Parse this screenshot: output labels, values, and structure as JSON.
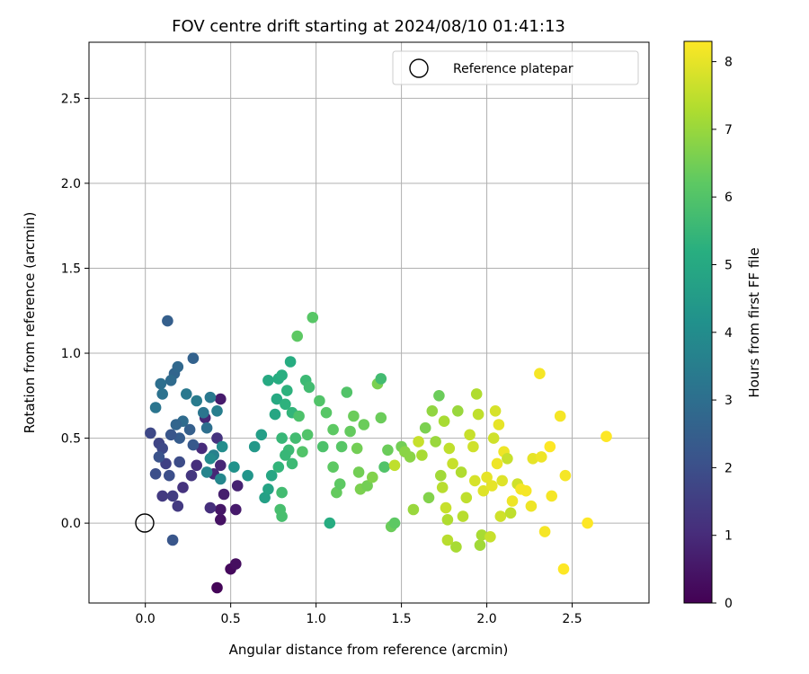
{
  "chart_data": {
    "type": "scatter",
    "title": "FOV centre drift starting at 2024/08/10 01:41:13",
    "xlabel": "Angular distance from reference (arcmin)",
    "ylabel": "Rotation from reference (arcmin)",
    "xlim": [
      -0.33,
      2.95
    ],
    "ylim": [
      -0.47,
      2.83
    ],
    "xticks": [
      "0.0",
      "0.5",
      "1.0",
      "1.5",
      "2.0",
      "2.5"
    ],
    "yticks": [
      "0.0",
      "0.5",
      "1.0",
      "1.5",
      "2.0",
      "2.5"
    ],
    "grid": true,
    "legend": {
      "position": "top-right",
      "entries": [
        "Reference platepar"
      ]
    },
    "reference_point": {
      "x": 0.0,
      "y": 0.0
    },
    "colorbar": {
      "label": "Hours from first FF file",
      "range": [
        0,
        8.3
      ],
      "ticks": [
        "0",
        "1",
        "2",
        "3",
        "4",
        "5",
        "6",
        "7",
        "8"
      ],
      "colormap": "viridis"
    },
    "points": [
      {
        "x": 0.42,
        "y": -0.38,
        "h": 0.1
      },
      {
        "x": 0.5,
        "y": -0.27,
        "h": 0.2
      },
      {
        "x": 0.53,
        "y": -0.24,
        "h": 0.3
      },
      {
        "x": 0.44,
        "y": 0.02,
        "h": 0.4
      },
      {
        "x": 0.44,
        "y": 0.08,
        "h": 0.5
      },
      {
        "x": 0.53,
        "y": 0.08,
        "h": 0.6
      },
      {
        "x": 0.46,
        "y": 0.17,
        "h": 0.7
      },
      {
        "x": 0.54,
        "y": 0.22,
        "h": 0.8
      },
      {
        "x": 0.4,
        "y": 0.29,
        "h": 0.9
      },
      {
        "x": 0.44,
        "y": 0.73,
        "h": 0.6
      },
      {
        "x": 0.35,
        "y": 0.62,
        "h": 0.9
      },
      {
        "x": 0.33,
        "y": 0.44,
        "h": 1.0
      },
      {
        "x": 0.3,
        "y": 0.34,
        "h": 1.1
      },
      {
        "x": 0.22,
        "y": 0.21,
        "h": 1.2
      },
      {
        "x": 0.27,
        "y": 0.28,
        "h": 1.3
      },
      {
        "x": 0.38,
        "y": 0.09,
        "h": 1.1
      },
      {
        "x": 0.42,
        "y": 0.5,
        "h": 1.2
      },
      {
        "x": 0.44,
        "y": 0.34,
        "h": 0.9
      },
      {
        "x": 0.1,
        "y": 0.16,
        "h": 1.4
      },
      {
        "x": 0.16,
        "y": 0.16,
        "h": 1.5
      },
      {
        "x": 0.19,
        "y": 0.1,
        "h": 1.4
      },
      {
        "x": 0.12,
        "y": 0.35,
        "h": 1.6
      },
      {
        "x": 0.08,
        "y": 0.47,
        "h": 1.7
      },
      {
        "x": 0.03,
        "y": 0.53,
        "h": 1.8
      },
      {
        "x": 0.1,
        "y": 0.44,
        "h": 1.8
      },
      {
        "x": 0.2,
        "y": 0.36,
        "h": 1.9
      },
      {
        "x": 0.14,
        "y": 0.28,
        "h": 2.0
      },
      {
        "x": 0.06,
        "y": 0.29,
        "h": 2.0
      },
      {
        "x": 0.08,
        "y": 0.39,
        "h": 2.1
      },
      {
        "x": 0.16,
        "y": -0.1,
        "h": 2.2
      },
      {
        "x": 0.13,
        "y": 1.19,
        "h": 2.5
      },
      {
        "x": 0.28,
        "y": 0.97,
        "h": 2.6
      },
      {
        "x": 0.17,
        "y": 0.88,
        "h": 2.7
      },
      {
        "x": 0.19,
        "y": 0.92,
        "h": 2.8
      },
      {
        "x": 0.15,
        "y": 0.84,
        "h": 2.9
      },
      {
        "x": 0.09,
        "y": 0.82,
        "h": 3.0
      },
      {
        "x": 0.1,
        "y": 0.76,
        "h": 3.1
      },
      {
        "x": 0.06,
        "y": 0.68,
        "h": 3.2
      },
      {
        "x": 0.24,
        "y": 0.76,
        "h": 3.3
      },
      {
        "x": 0.3,
        "y": 0.72,
        "h": 3.4
      },
      {
        "x": 0.38,
        "y": 0.74,
        "h": 3.3
      },
      {
        "x": 0.34,
        "y": 0.65,
        "h": 3.2
      },
      {
        "x": 0.22,
        "y": 0.6,
        "h": 2.9
      },
      {
        "x": 0.18,
        "y": 0.58,
        "h": 2.7
      },
      {
        "x": 0.26,
        "y": 0.55,
        "h": 2.5
      },
      {
        "x": 0.2,
        "y": 0.5,
        "h": 2.4
      },
      {
        "x": 0.28,
        "y": 0.46,
        "h": 2.3
      },
      {
        "x": 0.15,
        "y": 0.52,
        "h": 2.2
      },
      {
        "x": 0.36,
        "y": 0.56,
        "h": 3.0
      },
      {
        "x": 0.42,
        "y": 0.66,
        "h": 3.5
      },
      {
        "x": 0.4,
        "y": 0.4,
        "h": 3.6
      },
      {
        "x": 0.36,
        "y": 0.3,
        "h": 3.7
      },
      {
        "x": 0.44,
        "y": 0.26,
        "h": 3.8
      },
      {
        "x": 0.38,
        "y": 0.38,
        "h": 3.9
      },
      {
        "x": 0.45,
        "y": 0.45,
        "h": 4.0
      },
      {
        "x": 0.52,
        "y": 0.33,
        "h": 4.2
      },
      {
        "x": 0.6,
        "y": 0.28,
        "h": 4.3
      },
      {
        "x": 0.64,
        "y": 0.45,
        "h": 4.4
      },
      {
        "x": 0.68,
        "y": 0.52,
        "h": 4.6
      },
      {
        "x": 0.7,
        "y": 0.15,
        "h": 4.7
      },
      {
        "x": 0.72,
        "y": 0.2,
        "h": 4.8
      },
      {
        "x": 0.74,
        "y": 0.28,
        "h": 4.9
      },
      {
        "x": 0.76,
        "y": 0.64,
        "h": 4.9
      },
      {
        "x": 0.77,
        "y": 0.73,
        "h": 5.0
      },
      {
        "x": 0.72,
        "y": 0.84,
        "h": 5.0
      },
      {
        "x": 0.78,
        "y": 0.85,
        "h": 5.1
      },
      {
        "x": 0.8,
        "y": 0.87,
        "h": 5.2
      },
      {
        "x": 0.83,
        "y": 0.78,
        "h": 5.3
      },
      {
        "x": 0.85,
        "y": 0.95,
        "h": 5.1
      },
      {
        "x": 0.82,
        "y": 0.7,
        "h": 5.3
      },
      {
        "x": 0.86,
        "y": 0.65,
        "h": 5.4
      },
      {
        "x": 0.8,
        "y": 0.5,
        "h": 5.5
      },
      {
        "x": 0.84,
        "y": 0.43,
        "h": 5.6
      },
      {
        "x": 0.86,
        "y": 0.35,
        "h": 5.6
      },
      {
        "x": 0.82,
        "y": 0.4,
        "h": 5.5
      },
      {
        "x": 0.78,
        "y": 0.33,
        "h": 5.4
      },
      {
        "x": 0.8,
        "y": 0.18,
        "h": 5.7
      },
      {
        "x": 0.79,
        "y": 0.08,
        "h": 5.8
      },
      {
        "x": 0.8,
        "y": 0.04,
        "h": 5.8
      },
      {
        "x": 0.88,
        "y": 0.5,
        "h": 5.7
      },
      {
        "x": 0.9,
        "y": 0.63,
        "h": 5.9
      },
      {
        "x": 0.92,
        "y": 0.42,
        "h": 6.0
      },
      {
        "x": 0.95,
        "y": 0.52,
        "h": 6.0
      },
      {
        "x": 0.94,
        "y": 0.84,
        "h": 5.6
      },
      {
        "x": 0.96,
        "y": 0.8,
        "h": 5.7
      },
      {
        "x": 0.98,
        "y": 1.21,
        "h": 6.1
      },
      {
        "x": 0.89,
        "y": 1.1,
        "h": 6.2
      },
      {
        "x": 1.02,
        "y": 0.72,
        "h": 6.0
      },
      {
        "x": 1.04,
        "y": 0.45,
        "h": 5.9
      },
      {
        "x": 1.06,
        "y": 0.65,
        "h": 6.1
      },
      {
        "x": 1.08,
        "y": 0.0,
        "h": 5.1
      },
      {
        "x": 1.1,
        "y": 0.55,
        "h": 6.2
      },
      {
        "x": 1.1,
        "y": 0.33,
        "h": 6.2
      },
      {
        "x": 1.12,
        "y": 0.18,
        "h": 6.3
      },
      {
        "x": 1.14,
        "y": 0.23,
        "h": 6.2
      },
      {
        "x": 1.15,
        "y": 0.45,
        "h": 6.1
      },
      {
        "x": 1.18,
        "y": 0.77,
        "h": 6.0
      },
      {
        "x": 1.2,
        "y": 0.54,
        "h": 6.3
      },
      {
        "x": 1.22,
        "y": 0.63,
        "h": 6.4
      },
      {
        "x": 1.24,
        "y": 0.44,
        "h": 6.5
      },
      {
        "x": 1.25,
        "y": 0.3,
        "h": 6.5
      },
      {
        "x": 1.26,
        "y": 0.2,
        "h": 6.6
      },
      {
        "x": 1.28,
        "y": 0.58,
        "h": 6.4
      },
      {
        "x": 1.3,
        "y": 0.22,
        "h": 6.5
      },
      {
        "x": 1.33,
        "y": 0.27,
        "h": 6.7
      },
      {
        "x": 1.36,
        "y": 0.82,
        "h": 6.6
      },
      {
        "x": 1.38,
        "y": 0.85,
        "h": 5.7
      },
      {
        "x": 1.38,
        "y": 0.62,
        "h": 6.4
      },
      {
        "x": 1.4,
        "y": 0.33,
        "h": 6.0
      },
      {
        "x": 1.42,
        "y": 0.43,
        "h": 6.4
      },
      {
        "x": 1.44,
        "y": -0.02,
        "h": 6.4
      },
      {
        "x": 1.46,
        "y": 0.0,
        "h": 6.2
      },
      {
        "x": 1.46,
        "y": 0.34,
        "h": 7.5
      },
      {
        "x": 1.5,
        "y": 0.45,
        "h": 6.5
      },
      {
        "x": 1.52,
        "y": 0.42,
        "h": 6.8
      },
      {
        "x": 1.55,
        "y": 0.39,
        "h": 6.8
      },
      {
        "x": 1.57,
        "y": 0.08,
        "h": 7.0
      },
      {
        "x": 1.6,
        "y": 0.48,
        "h": 7.6
      },
      {
        "x": 1.62,
        "y": 0.4,
        "h": 7.2
      },
      {
        "x": 1.64,
        "y": 0.56,
        "h": 6.6
      },
      {
        "x": 1.66,
        "y": 0.15,
        "h": 6.7
      },
      {
        "x": 1.68,
        "y": 0.66,
        "h": 6.9
      },
      {
        "x": 1.7,
        "y": 0.48,
        "h": 7.0
      },
      {
        "x": 1.72,
        "y": 0.75,
        "h": 6.4
      },
      {
        "x": 1.73,
        "y": 0.28,
        "h": 7.1
      },
      {
        "x": 1.74,
        "y": 0.21,
        "h": 7.4
      },
      {
        "x": 1.75,
        "y": 0.6,
        "h": 7.2
      },
      {
        "x": 1.76,
        "y": 0.09,
        "h": 7.6
      },
      {
        "x": 1.77,
        "y": 0.02,
        "h": 7.3
      },
      {
        "x": 1.77,
        "y": -0.1,
        "h": 7.4
      },
      {
        "x": 1.78,
        "y": 0.44,
        "h": 7.5
      },
      {
        "x": 1.8,
        "y": 0.35,
        "h": 7.6
      },
      {
        "x": 1.82,
        "y": -0.14,
        "h": 7.2
      },
      {
        "x": 1.83,
        "y": 0.66,
        "h": 7.0
      },
      {
        "x": 1.85,
        "y": 0.3,
        "h": 7.3
      },
      {
        "x": 1.86,
        "y": 0.04,
        "h": 7.4
      },
      {
        "x": 1.88,
        "y": 0.15,
        "h": 7.5
      },
      {
        "x": 1.9,
        "y": 0.52,
        "h": 7.6
      },
      {
        "x": 1.92,
        "y": 0.45,
        "h": 7.7
      },
      {
        "x": 1.93,
        "y": 0.25,
        "h": 7.8
      },
      {
        "x": 1.94,
        "y": 0.76,
        "h": 7.3
      },
      {
        "x": 1.95,
        "y": 0.64,
        "h": 7.5
      },
      {
        "x": 1.96,
        "y": -0.13,
        "h": 7.1
      },
      {
        "x": 1.97,
        "y": -0.07,
        "h": 7.2
      },
      {
        "x": 1.98,
        "y": 0.19,
        "h": 7.9
      },
      {
        "x": 2.0,
        "y": 0.27,
        "h": 8.0
      },
      {
        "x": 2.02,
        "y": -0.08,
        "h": 7.6
      },
      {
        "x": 2.03,
        "y": 0.22,
        "h": 8.0
      },
      {
        "x": 2.04,
        "y": 0.5,
        "h": 7.7
      },
      {
        "x": 2.05,
        "y": 0.66,
        "h": 7.8
      },
      {
        "x": 2.06,
        "y": 0.35,
        "h": 8.1
      },
      {
        "x": 2.07,
        "y": 0.58,
        "h": 8.0
      },
      {
        "x": 2.08,
        "y": 0.04,
        "h": 7.7
      },
      {
        "x": 2.09,
        "y": 0.25,
        "h": 7.9
      },
      {
        "x": 2.1,
        "y": 0.42,
        "h": 8.1
      },
      {
        "x": 2.12,
        "y": 0.38,
        "h": 7.6
      },
      {
        "x": 2.14,
        "y": 0.06,
        "h": 7.5
      },
      {
        "x": 2.15,
        "y": 0.13,
        "h": 8.1
      },
      {
        "x": 2.18,
        "y": 0.23,
        "h": 7.7
      },
      {
        "x": 2.2,
        "y": 0.2,
        "h": 8.2
      },
      {
        "x": 2.23,
        "y": 0.19,
        "h": 8.2
      },
      {
        "x": 2.26,
        "y": 0.1,
        "h": 8.1
      },
      {
        "x": 2.27,
        "y": 0.38,
        "h": 8.0
      },
      {
        "x": 2.31,
        "y": 0.88,
        "h": 8.2
      },
      {
        "x": 2.32,
        "y": 0.39,
        "h": 8.1
      },
      {
        "x": 2.34,
        "y": -0.05,
        "h": 8.2
      },
      {
        "x": 2.37,
        "y": 0.45,
        "h": 8.3
      },
      {
        "x": 2.38,
        "y": 0.16,
        "h": 8.2
      },
      {
        "x": 2.43,
        "y": 0.63,
        "h": 8.2
      },
      {
        "x": 2.45,
        "y": -0.27,
        "h": 8.3
      },
      {
        "x": 2.46,
        "y": 0.28,
        "h": 8.2
      },
      {
        "x": 2.59,
        "y": 0.0,
        "h": 8.3
      },
      {
        "x": 2.7,
        "y": 0.51,
        "h": 8.3
      }
    ]
  }
}
